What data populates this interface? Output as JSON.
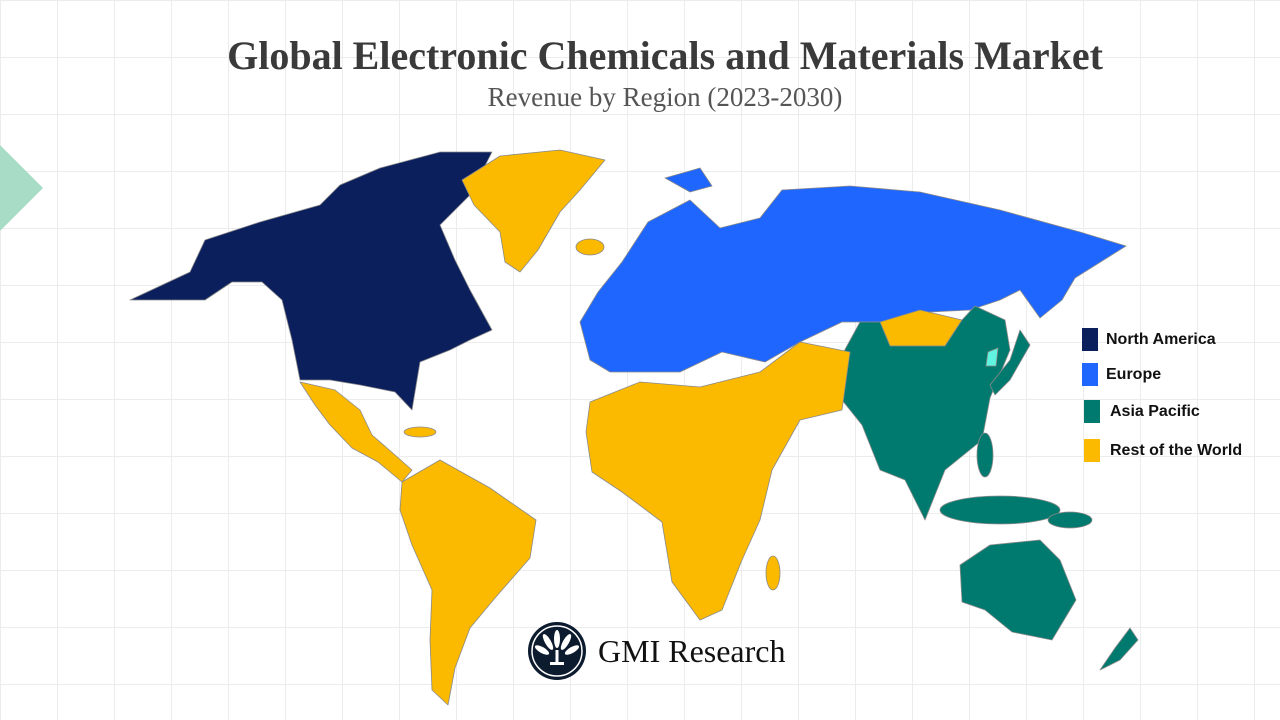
{
  "header": {
    "title": "Global Electronic Chemicals and Materials Market",
    "subtitle": "Revenue by Region (2023-2030)"
  },
  "legend": [
    {
      "label": "North America",
      "color": "#0b1f5c"
    },
    {
      "label": "Europe",
      "color": "#1f66ff"
    },
    {
      "label": "Asia Pacific",
      "color": "#007a6e"
    },
    {
      "label": "Rest of the World",
      "color": "#fbb900"
    }
  ],
  "logo": {
    "text": "GMI Research",
    "icon": "peacock-fan-logo-icon"
  },
  "accent_colors": {
    "decor_triangle": "#a9dcc6",
    "korea_highlight": "#5ff5e0"
  }
}
